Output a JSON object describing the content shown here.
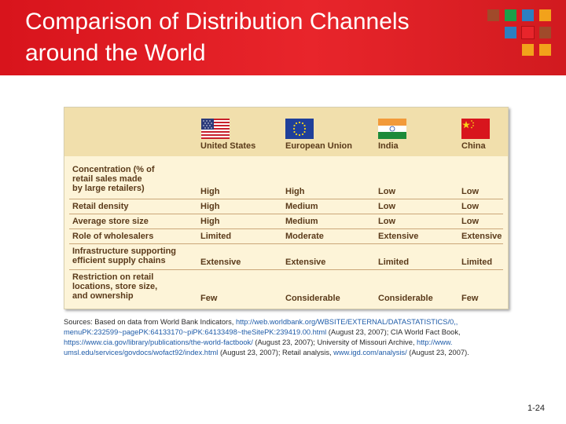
{
  "slide": {
    "title_line1": "Comparison of Distribution Channels",
    "title_line2": "around the World",
    "page_number": "1-24",
    "accent_colors": [
      "#a04a2a",
      "#1aa04a",
      "#2c7fc0",
      "#f2a21b",
      "#e8252b"
    ]
  },
  "table": {
    "columns": [
      "United States",
      "European Union",
      "India",
      "China"
    ],
    "flag_icons": [
      "us-flag",
      "eu-flag",
      "india-flag",
      "china-flag"
    ],
    "rows": [
      {
        "label_lines": [
          "Concentration (% of",
          "retail sales made",
          "by large retailers)"
        ],
        "values": [
          "High",
          "High",
          "Low",
          "Low"
        ]
      },
      {
        "label_lines": [
          "Retail density"
        ],
        "values": [
          "High",
          "Medium",
          "Low",
          "Low"
        ]
      },
      {
        "label_lines": [
          "Average store size"
        ],
        "values": [
          "High",
          "Medium",
          "Low",
          "Low"
        ]
      },
      {
        "label_lines": [
          "Role of wholesalers"
        ],
        "values": [
          "Limited",
          "Moderate",
          "Extensive",
          "Extensive"
        ]
      },
      {
        "label_lines": [
          "Infrastructure supporting",
          "efficient supply chains"
        ],
        "values": [
          "Extensive",
          "Extensive",
          "Limited",
          "Limited"
        ]
      },
      {
        "label_lines": [
          "Restriction on retail",
          "locations, store size,",
          "and ownership"
        ],
        "values": [
          "Few",
          "Considerable",
          "Considerable",
          "Few"
        ]
      }
    ]
  },
  "sources": {
    "lines": [
      [
        {
          "t": "Sources: Based on data from World Bank Indicators, "
        },
        {
          "t": "http://web.worldbank.org/WBSITE/EXTERNAL/DATASTATISTICS/0,,",
          "u": true
        }
      ],
      [
        {
          "t": "menuPK:232599~pagePK:64133170~piPK:64133498~theSitePK:239419.00.html",
          "u": true
        },
        {
          "t": " (August 23, 2007); CIA World Fact Book,"
        }
      ],
      [
        {
          "t": "https://www.cia.gov/library/publications/the-world-factbook/",
          "u": true
        },
        {
          "t": " (August 23, 2007); University of Missouri Archive, "
        },
        {
          "t": "http://www.",
          "u": true
        }
      ],
      [
        {
          "t": "umsl.edu/services/govdocs/wofact92/index.html",
          "u": true
        },
        {
          "t": " (August 23, 2007); Retail analysis, "
        },
        {
          "t": "www.igd.com/analysis/",
          "u": true
        },
        {
          "t": " (August 23, 2007)."
        }
      ]
    ]
  }
}
